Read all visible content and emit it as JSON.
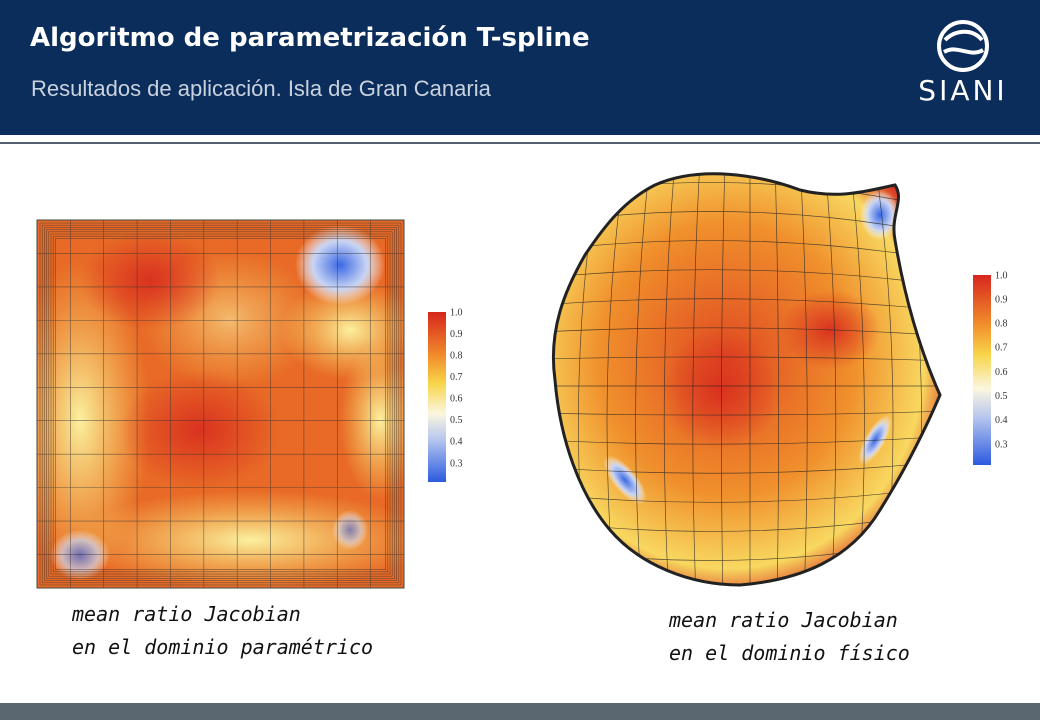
{
  "header": {
    "title": "Algoritmo de parametrización T-spline",
    "subtitle": "Resultados de aplicación. Isla de Gran Canaria",
    "logo": "SIANI"
  },
  "figures": [
    {
      "colorbar": [
        "1.0",
        "0.9",
        "0.8",
        "0.7",
        "0.6",
        "0.5",
        "0.4",
        "0.3"
      ],
      "caption": [
        "mean ratio Jacobian",
        "en el dominio paramétrico"
      ]
    },
    {
      "colorbar": [
        "1.0",
        "0.9",
        "0.8",
        "0.7",
        "0.6",
        "0.5",
        "0.4",
        "0.3"
      ],
      "caption": [
        "mean ratio Jacobian",
        "en el dominio físico"
      ]
    }
  ]
}
